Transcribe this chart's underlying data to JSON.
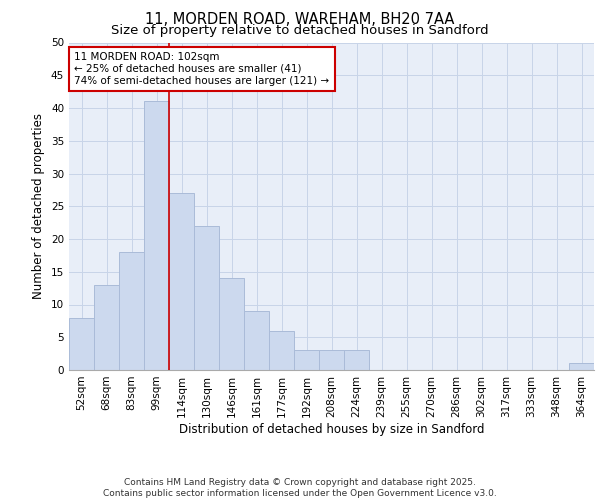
{
  "title_line1": "11, MORDEN ROAD, WAREHAM, BH20 7AA",
  "title_line2": "Size of property relative to detached houses in Sandford",
  "xlabel": "Distribution of detached houses by size in Sandford",
  "ylabel": "Number of detached properties",
  "categories": [
    "52sqm",
    "68sqm",
    "83sqm",
    "99sqm",
    "114sqm",
    "130sqm",
    "146sqm",
    "161sqm",
    "177sqm",
    "192sqm",
    "208sqm",
    "224sqm",
    "239sqm",
    "255sqm",
    "270sqm",
    "286sqm",
    "302sqm",
    "317sqm",
    "333sqm",
    "348sqm",
    "364sqm"
  ],
  "values": [
    8,
    13,
    18,
    41,
    27,
    22,
    14,
    9,
    6,
    3,
    3,
    3,
    0,
    0,
    0,
    0,
    0,
    0,
    0,
    0,
    1
  ],
  "bar_color": "#ccd9ee",
  "bar_edge_color": "#aabbd8",
  "grid_color": "#c8d4e8",
  "background_color": "#e8eef8",
  "vline_color": "#cc0000",
  "vline_x": 3.5,
  "annotation_text": "11 MORDEN ROAD: 102sqm\n← 25% of detached houses are smaller (41)\n74% of semi-detached houses are larger (121) →",
  "annotation_box_color": "#ffffff",
  "annotation_box_edge": "#cc0000",
  "ylim": [
    0,
    50
  ],
  "yticks": [
    0,
    5,
    10,
    15,
    20,
    25,
    30,
    35,
    40,
    45,
    50
  ],
  "footer": "Contains HM Land Registry data © Crown copyright and database right 2025.\nContains public sector information licensed under the Open Government Licence v3.0.",
  "title_fontsize": 10.5,
  "subtitle_fontsize": 9.5,
  "axis_label_fontsize": 8.5,
  "tick_fontsize": 7.5,
  "annotation_fontsize": 7.5,
  "footer_fontsize": 6.5
}
